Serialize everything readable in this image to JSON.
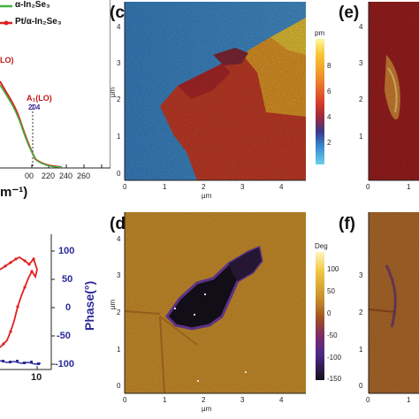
{
  "panel_a": {
    "legend": [
      {
        "label": "α-In₂Se₃",
        "color": "#3fb33f"
      },
      {
        "label": "Pt/α-In₂Se₃",
        "color": "#e02020"
      }
    ],
    "lo_label": "LO)",
    "peak_label": "A₁(LO)",
    "peak_value": "204",
    "x_ticks": [
      "00",
      "220",
      "240",
      "260"
    ],
    "x_unit": "m⁻¹)"
  },
  "panel_b": {
    "phase_label": "Phase(°)",
    "right_ticks": [
      "100",
      "50",
      "0",
      "-50",
      "-100"
    ],
    "x_ticks": [
      "10"
    ]
  },
  "panel_c": {
    "label": "(c)",
    "y_ticks": [
      "4",
      "3",
      "2",
      "1",
      "0"
    ],
    "x_ticks": [
      "0",
      "1",
      "2",
      "3",
      "4"
    ],
    "x_unit": "μm",
    "y_unit": "μm",
    "cb_unit": "pm",
    "cb_ticks": [
      "8",
      "6",
      "4",
      "2"
    ]
  },
  "panel_d": {
    "label": "(d)",
    "y_ticks": [
      "4",
      "3",
      "2",
      "1",
      "0"
    ],
    "x_ticks": [
      "0",
      "1",
      "2",
      "3",
      "4"
    ],
    "x_unit": "μm",
    "y_unit": "μm",
    "cb_unit": "Deg",
    "cb_ticks": [
      "100",
      "50",
      "0",
      "-50",
      "-100",
      "-150"
    ]
  },
  "panel_e": {
    "label": "(e)",
    "y_ticks": [
      "4",
      "3",
      "2",
      "1"
    ],
    "x_ticks": [
      "0",
      "1"
    ]
  },
  "panel_f": {
    "label": "(f)",
    "y_ticks": [
      "3",
      "2",
      "1",
      "0"
    ],
    "x_ticks": [
      "0",
      "1"
    ]
  },
  "colors": {
    "red_curve": "#e02020",
    "green_curve": "#3fb33f",
    "blue_curve": "#2a2a9a",
    "purple_label": "#3a2a9a"
  }
}
